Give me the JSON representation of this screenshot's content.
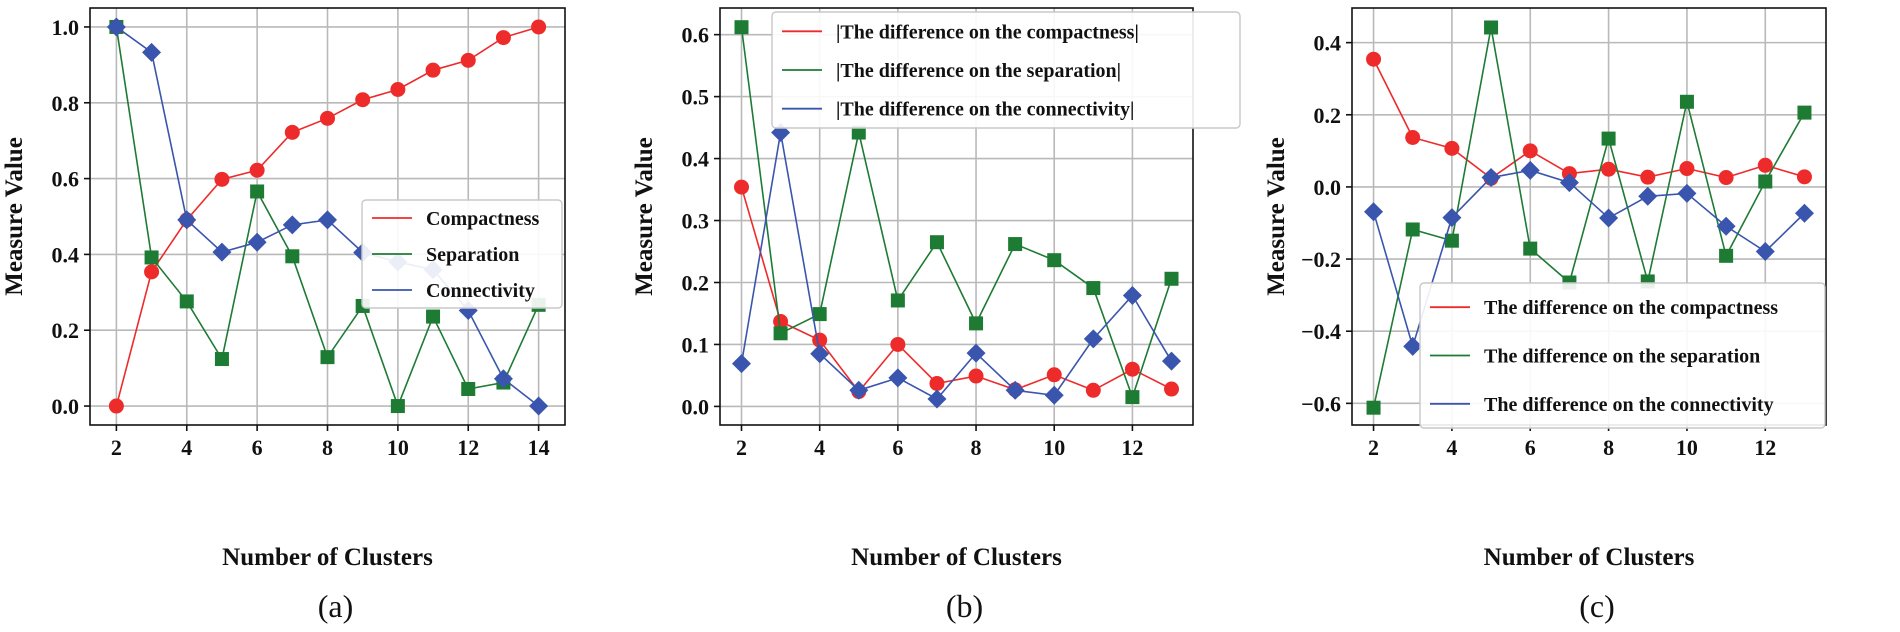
{
  "chart_data": [
    {
      "type": "line",
      "caption": "(a)",
      "xlabel": "Number of Clusters",
      "ylabel": "Measure Value",
      "xlim": [
        1.25,
        14.75
      ],
      "ylim": [
        -0.05,
        1.05
      ],
      "xticks": [
        2,
        4,
        6,
        8,
        10,
        12,
        14
      ],
      "yticks": [
        0.0,
        0.2,
        0.4,
        0.6,
        0.8,
        1.0
      ],
      "ytick_labels": [
        "0.0",
        "0.2",
        "0.4",
        "0.6",
        "0.8",
        "1.0"
      ],
      "grid": true,
      "legend_position": "center-right",
      "x": [
        2,
        3,
        4,
        5,
        6,
        7,
        8,
        9,
        10,
        11,
        12,
        13,
        14
      ],
      "series": [
        {
          "name": "Compactness",
          "color": "#ee2b2b",
          "marker": "circle",
          "values": [
            0.0,
            0.354,
            0.491,
            0.598,
            0.622,
            0.722,
            0.759,
            0.808,
            0.835,
            0.886,
            0.912,
            0.972,
            1.0
          ]
        },
        {
          "name": "Separation",
          "color": "#1e7b34",
          "marker": "square",
          "values": [
            1.0,
            0.392,
            0.276,
            0.124,
            0.566,
            0.395,
            0.129,
            0.264,
            0.0,
            0.236,
            0.045,
            0.062,
            0.267
          ]
        },
        {
          "name": "Connectivity",
          "color": "#3a55ad",
          "marker": "diamond",
          "values": [
            1.0,
            0.933,
            0.491,
            0.406,
            0.432,
            0.478,
            0.491,
            0.405,
            0.38,
            0.36,
            0.252,
            0.072,
            0.0
          ]
        }
      ]
    },
    {
      "type": "line",
      "caption": "(b)",
      "xlabel": "Number of Clusters",
      "ylabel": "Measure Value",
      "xlim": [
        1.45,
        13.55
      ],
      "ylim": [
        -0.03,
        0.643
      ],
      "xticks": [
        2,
        4,
        6,
        8,
        10,
        12
      ],
      "yticks": [
        0.0,
        0.1,
        0.2,
        0.3,
        0.4,
        0.5,
        0.6
      ],
      "ytick_labels": [
        "0.0",
        "0.1",
        "0.2",
        "0.3",
        "0.4",
        "0.5",
        "0.6"
      ],
      "grid": true,
      "legend_position": "top-right",
      "x": [
        2,
        3,
        4,
        5,
        6,
        7,
        8,
        9,
        10,
        11,
        12,
        13
      ],
      "series": [
        {
          "name": "|The difference on the compactness|",
          "color": "#ee2b2b",
          "marker": "circle",
          "values": [
            0.354,
            0.137,
            0.107,
            0.024,
            0.1,
            0.037,
            0.049,
            0.027,
            0.051,
            0.026,
            0.06,
            0.028
          ]
        },
        {
          "name": "|The difference on the separation|",
          "color": "#1e7b34",
          "marker": "square",
          "values": [
            0.612,
            0.118,
            0.149,
            0.442,
            0.171,
            0.265,
            0.134,
            0.262,
            0.236,
            0.191,
            0.015,
            0.206
          ]
        },
        {
          "name": "|The difference on the connectivity|",
          "color": "#3a55ad",
          "marker": "diamond",
          "values": [
            0.069,
            0.442,
            0.085,
            0.026,
            0.046,
            0.012,
            0.086,
            0.026,
            0.018,
            0.109,
            0.179,
            0.073
          ]
        }
      ]
    },
    {
      "type": "line",
      "caption": "(c)",
      "xlabel": "Number of Clusters",
      "ylabel": "Measure Value",
      "xlim": [
        1.45,
        13.55
      ],
      "ylim": [
        -0.66,
        0.496
      ],
      "xticks": [
        2,
        4,
        6,
        8,
        10,
        12
      ],
      "yticks": [
        -0.6,
        -0.4,
        -0.2,
        0.0,
        0.2,
        0.4
      ],
      "ytick_labels": [
        "−0.6",
        "−0.4",
        "−0.2",
        "0.0",
        "0.2",
        "0.4"
      ],
      "grid": true,
      "legend_position": "bottom-right",
      "x": [
        2,
        3,
        4,
        5,
        6,
        7,
        8,
        9,
        10,
        11,
        12,
        13
      ],
      "series": [
        {
          "name": "The difference on the compactness",
          "color": "#ee2b2b",
          "marker": "circle",
          "values": [
            0.354,
            0.137,
            0.107,
            0.024,
            0.1,
            0.037,
            0.049,
            0.027,
            0.051,
            0.026,
            0.06,
            0.028
          ]
        },
        {
          "name": "The difference on the separation",
          "color": "#1e7b34",
          "marker": "square",
          "values": [
            -0.612,
            -0.118,
            -0.149,
            0.442,
            -0.171,
            -0.265,
            0.134,
            -0.262,
            0.236,
            -0.191,
            0.015,
            0.206
          ]
        },
        {
          "name": "The difference on the connectivity",
          "color": "#3a55ad",
          "marker": "diamond",
          "values": [
            -0.069,
            -0.442,
            -0.085,
            0.026,
            0.046,
            0.012,
            -0.086,
            -0.026,
            -0.018,
            -0.109,
            -0.179,
            -0.073
          ]
        }
      ]
    }
  ]
}
